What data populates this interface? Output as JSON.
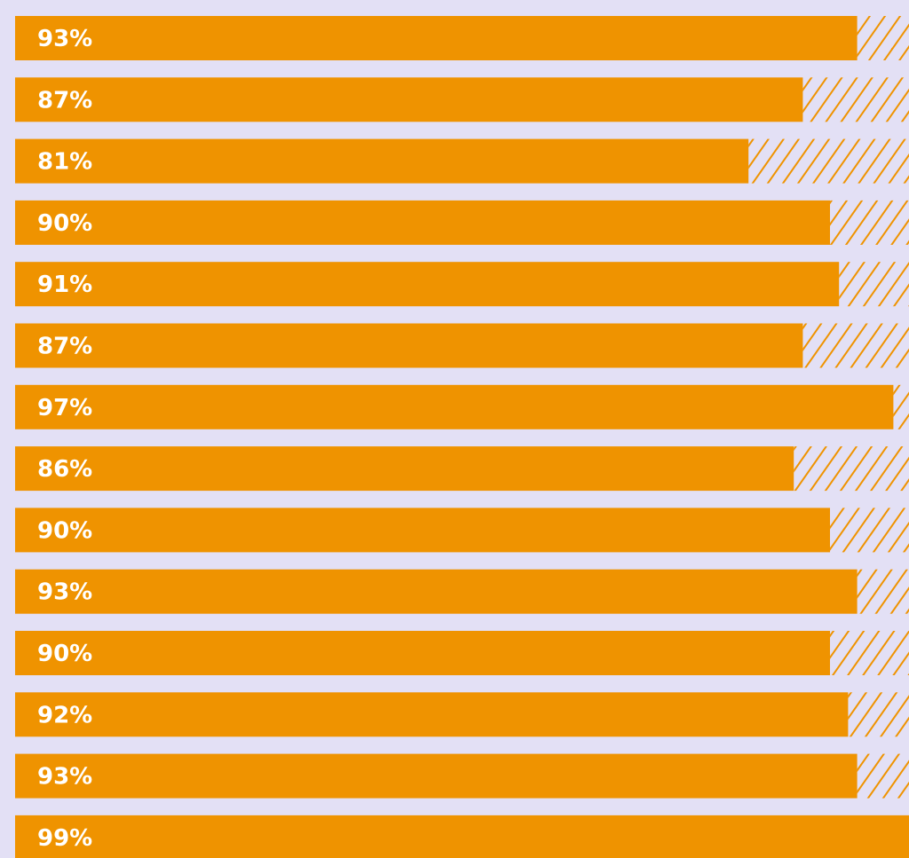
{
  "chart_data": {
    "type": "bar",
    "orientation": "horizontal",
    "stacked": true,
    "values": [
      93,
      87,
      81,
      90,
      91,
      87,
      97,
      86,
      90,
      93,
      90,
      92,
      93,
      99
    ],
    "labels": [
      "93%",
      "87%",
      "81%",
      "90%",
      "91%",
      "87%",
      "97%",
      "86%",
      "90%",
      "93%",
      "90%",
      "92%",
      "93%",
      "99%"
    ],
    "xlim": [
      0,
      100
    ],
    "remainder_style": "hatched",
    "grid": false
  },
  "colors": {
    "background": "#e3e0f5",
    "bar": "#ef9300",
    "hatch": "#ef9300",
    "label": "#ffffff"
  }
}
